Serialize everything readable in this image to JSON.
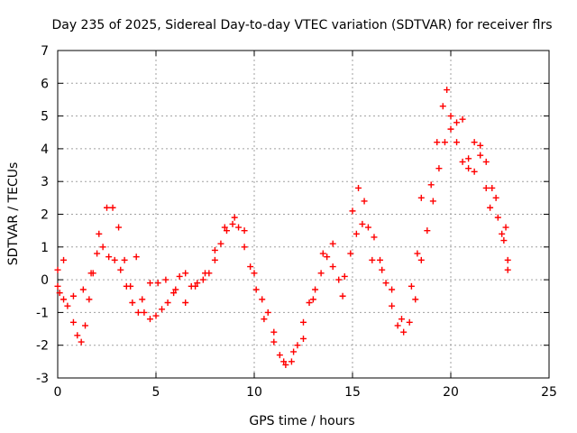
{
  "chart_data": {
    "type": "scatter",
    "title": "Day 235 of 2025, Sidereal Day-to-day VTEC variation (SDTVAR) for receiver flrs",
    "xlabel": "GPS time / hours",
    "ylabel": "SDTVAR / TECUs",
    "xlim": [
      0,
      25
    ],
    "ylim": [
      -3,
      7
    ],
    "xticks": [
      "0",
      "5",
      "10",
      "15",
      "20",
      "25"
    ],
    "yticks": [
      "-3",
      "-2",
      "-1",
      "0",
      "1",
      "2",
      "3",
      "4",
      "5",
      "6",
      "7"
    ],
    "grid": true,
    "marker": "+",
    "color": "#ff0000",
    "series": [
      {
        "name": "SDTVAR",
        "points": [
          [
            0.0,
            -0.2
          ],
          [
            0.1,
            -0.4
          ],
          [
            0.3,
            -0.6
          ],
          [
            0.5,
            -0.8
          ],
          [
            0.8,
            -1.3
          ],
          [
            1.0,
            -1.7
          ],
          [
            1.2,
            -1.9
          ],
          [
            1.4,
            -1.4
          ],
          [
            1.6,
            -0.6
          ],
          [
            1.8,
            0.2
          ],
          [
            2.0,
            0.8
          ],
          [
            2.3,
            1.0
          ],
          [
            2.6,
            0.7
          ],
          [
            2.9,
            0.6
          ],
          [
            3.2,
            0.3
          ],
          [
            3.5,
            -0.2
          ],
          [
            3.8,
            -0.7
          ],
          [
            4.1,
            -1.0
          ],
          [
            4.4,
            -1.0
          ],
          [
            4.7,
            -1.2
          ],
          [
            5.0,
            -1.1
          ],
          [
            5.3,
            -0.9
          ],
          [
            5.6,
            -0.7
          ],
          [
            5.9,
            -0.4
          ],
          [
            6.2,
            0.1
          ],
          [
            6.5,
            0.2
          ],
          [
            6.8,
            -0.2
          ],
          [
            7.1,
            -0.1
          ],
          [
            7.4,
            0.0
          ],
          [
            7.7,
            0.2
          ],
          [
            8.0,
            0.6
          ],
          [
            8.3,
            1.1
          ],
          [
            8.6,
            1.5
          ],
          [
            8.9,
            1.7
          ],
          [
            9.2,
            1.6
          ],
          [
            9.5,
            1.0
          ],
          [
            9.8,
            0.4
          ],
          [
            10.1,
            -0.3
          ],
          [
            10.4,
            -0.6
          ],
          [
            10.7,
            -1.0
          ],
          [
            11.0,
            -1.6
          ],
          [
            11.3,
            -2.3
          ],
          [
            11.6,
            -2.6
          ],
          [
            11.9,
            -2.5
          ],
          [
            12.2,
            -2.0
          ],
          [
            12.5,
            -1.3
          ],
          [
            12.8,
            -0.7
          ],
          [
            13.1,
            -0.3
          ],
          [
            13.4,
            0.2
          ],
          [
            13.7,
            0.7
          ],
          [
            14.0,
            0.4
          ],
          [
            14.3,
            0.0
          ],
          [
            14.6,
            0.1
          ],
          [
            14.9,
            0.8
          ],
          [
            15.2,
            1.4
          ],
          [
            15.5,
            1.7
          ],
          [
            15.8,
            1.6
          ],
          [
            16.1,
            1.3
          ],
          [
            16.4,
            0.6
          ],
          [
            16.7,
            -0.1
          ],
          [
            17.0,
            -0.8
          ],
          [
            17.3,
            -1.4
          ],
          [
            17.6,
            -1.6
          ],
          [
            17.9,
            -1.3
          ],
          [
            18.2,
            -0.6
          ],
          [
            18.5,
            0.6
          ],
          [
            18.8,
            1.5
          ],
          [
            19.1,
            2.4
          ],
          [
            19.4,
            3.4
          ],
          [
            19.7,
            4.2
          ],
          [
            20.0,
            4.6
          ],
          [
            20.3,
            4.2
          ],
          [
            20.6,
            3.6
          ],
          [
            20.9,
            3.4
          ],
          [
            21.2,
            4.2
          ],
          [
            21.5,
            4.1
          ],
          [
            21.8,
            3.6
          ],
          [
            22.1,
            2.8
          ],
          [
            22.4,
            1.9
          ],
          [
            22.7,
            1.2
          ],
          [
            22.9,
            0.6
          ],
          [
            0.0,
            0.3
          ],
          [
            0.3,
            0.6
          ],
          [
            0.8,
            -0.5
          ],
          [
            1.3,
            -0.3
          ],
          [
            1.7,
            0.2
          ],
          [
            2.1,
            1.4
          ],
          [
            2.5,
            2.2
          ],
          [
            2.8,
            2.2
          ],
          [
            3.1,
            1.6
          ],
          [
            3.4,
            0.6
          ],
          [
            3.7,
            -0.2
          ],
          [
            4.0,
            0.7
          ],
          [
            4.3,
            -0.6
          ],
          [
            4.7,
            -0.1
          ],
          [
            5.1,
            -0.1
          ],
          [
            5.5,
            0.0
          ],
          [
            6.0,
            -0.3
          ],
          [
            6.5,
            -0.7
          ],
          [
            7.0,
            -0.2
          ],
          [
            7.5,
            0.2
          ],
          [
            8.0,
            0.9
          ],
          [
            8.5,
            1.6
          ],
          [
            9.0,
            1.9
          ],
          [
            9.5,
            1.5
          ],
          [
            10.0,
            0.2
          ],
          [
            10.5,
            -1.2
          ],
          [
            11.0,
            -1.9
          ],
          [
            11.5,
            -2.5
          ],
          [
            12.0,
            -2.2
          ],
          [
            12.5,
            -1.8
          ],
          [
            13.0,
            -0.6
          ],
          [
            13.5,
            0.8
          ],
          [
            14.0,
            1.1
          ],
          [
            14.5,
            -0.5
          ],
          [
            15.0,
            2.1
          ],
          [
            15.3,
            2.8
          ],
          [
            15.6,
            2.4
          ],
          [
            16.0,
            0.6
          ],
          [
            16.5,
            0.3
          ],
          [
            17.0,
            -0.3
          ],
          [
            17.5,
            -1.2
          ],
          [
            18.0,
            -0.2
          ],
          [
            18.3,
            0.8
          ],
          [
            18.5,
            2.5
          ],
          [
            19.0,
            2.9
          ],
          [
            19.3,
            4.2
          ],
          [
            19.6,
            5.3
          ],
          [
            19.8,
            5.8
          ],
          [
            20.0,
            5.0
          ],
          [
            20.3,
            4.8
          ],
          [
            20.6,
            4.9
          ],
          [
            20.9,
            3.7
          ],
          [
            21.2,
            3.3
          ],
          [
            21.5,
            3.8
          ],
          [
            21.8,
            2.8
          ],
          [
            22.0,
            2.2
          ],
          [
            22.3,
            2.5
          ],
          [
            22.6,
            1.4
          ],
          [
            22.8,
            1.6
          ],
          [
            22.9,
            0.3
          ]
        ]
      }
    ]
  }
}
